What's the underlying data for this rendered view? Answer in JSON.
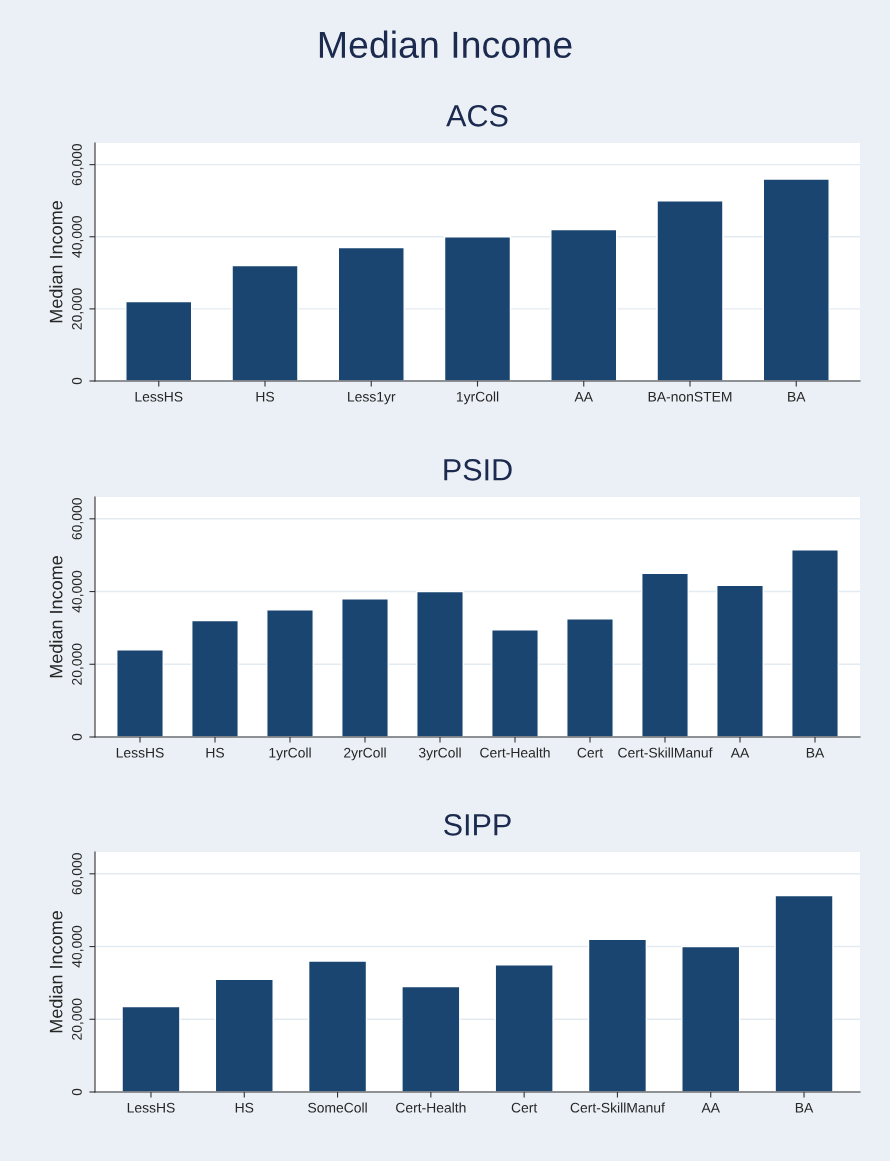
{
  "chart_data": [
    {
      "type": "bar",
      "title": "Median Income",
      "subtitle": "ACS",
      "ylabel": "Median Income",
      "categories": [
        "LessHS",
        "HS",
        "Less1yr",
        "1yrColl",
        "AA",
        "BA-nonSTEM",
        "BA"
      ],
      "values": [
        22000,
        32000,
        37000,
        40000,
        42000,
        50000,
        56000
      ],
      "color": "#1a4570",
      "ylim": [
        0,
        66000
      ],
      "yticks": [
        0,
        {
          "value": 20000,
          "label": "20,000"
        },
        {
          "value": 40000,
          "label": "40,000"
        },
        {
          "value": 60000,
          "label": "60,000"
        }
      ],
      "grid": "y",
      "legend": false
    },
    {
      "type": "bar",
      "title": "PSID",
      "ylabel": "Median Income",
      "categories": [
        "LessHS",
        "HS",
        "1yrColl",
        "2yrColl",
        "3yrColl",
        "Cert-Health",
        "Cert",
        "Cert-SkillManuf",
        "AA",
        "BA"
      ],
      "values": [
        24000,
        32000,
        35000,
        38000,
        40000,
        29500,
        32500,
        45000,
        41700,
        51500
      ],
      "color": "#1a4570",
      "ylim": [
        0,
        66000
      ],
      "yticks": [
        0,
        {
          "value": 20000,
          "label": "20,000"
        },
        {
          "value": 40000,
          "label": "40,000"
        },
        {
          "value": 60000,
          "label": "60,000"
        }
      ],
      "grid": "y",
      "legend": false
    },
    {
      "type": "bar",
      "title": "SIPP",
      "ylabel": "Median Income",
      "categories": [
        "LessHS",
        "HS",
        "SomeColl",
        "Cert-Health",
        "Cert",
        "Cert-SkillManuf",
        "AA",
        "BA"
      ],
      "values": [
        23500,
        31000,
        36000,
        29000,
        35000,
        42000,
        40000,
        54000
      ],
      "color": "#1a4570",
      "ylim": [
        0,
        66000
      ],
      "yticks": [
        0,
        {
          "value": 20000,
          "label": "20,000"
        },
        {
          "value": 40000,
          "label": "40,000"
        },
        {
          "value": 60000,
          "label": "60,000"
        }
      ],
      "grid": "y",
      "legend": false
    }
  ]
}
